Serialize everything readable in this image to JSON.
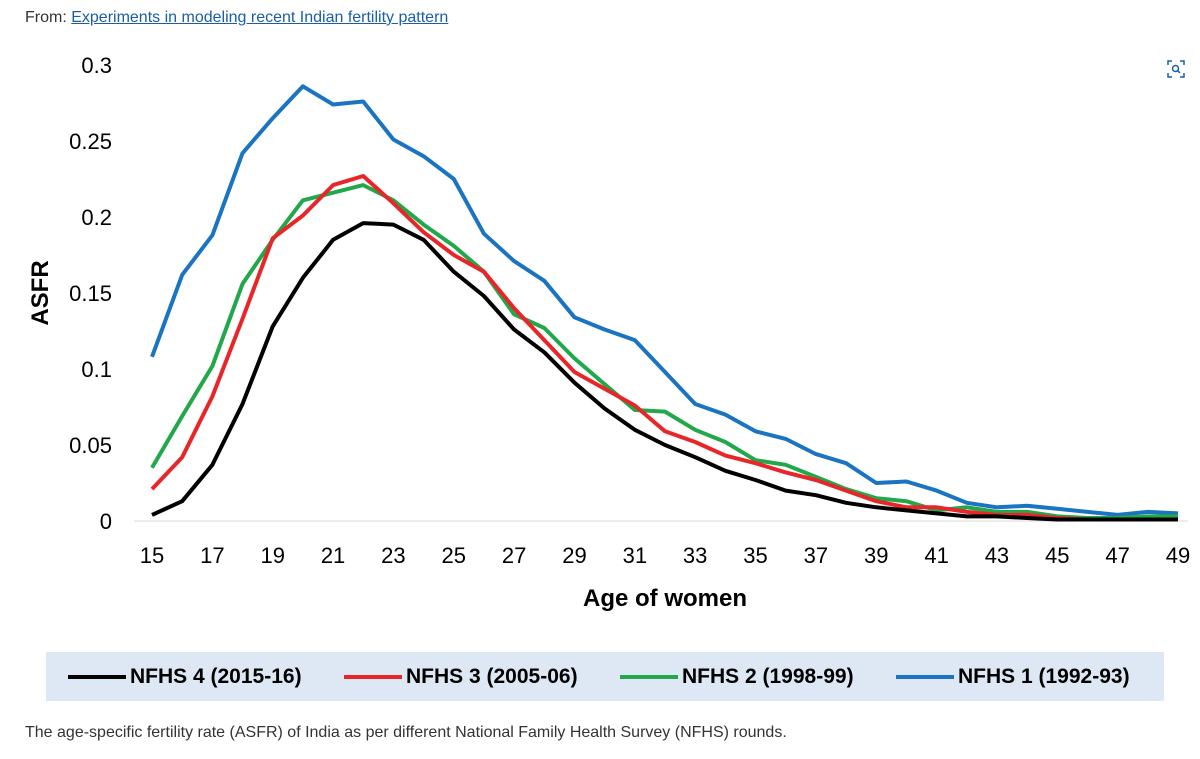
{
  "source": {
    "prefix": "From: ",
    "link_text": "Experiments in modeling recent Indian fertility pattern"
  },
  "expand_icon": "zoom-expand-icon",
  "caption": "The age-specific fertility rate (ASFR) of India as per different National Family Health Survey (NFHS) rounds.",
  "chart_data": {
    "type": "line",
    "title": "",
    "xlabel": "Age of women",
    "ylabel": "ASFR",
    "xlim": [
      15,
      49
    ],
    "ylim": [
      0,
      0.3
    ],
    "x_ticks": [
      15,
      17,
      19,
      21,
      23,
      25,
      27,
      29,
      31,
      33,
      35,
      37,
      39,
      41,
      43,
      45,
      47,
      49
    ],
    "y_ticks": [
      0,
      0.05,
      0.1,
      0.15,
      0.2,
      0.25,
      0.3
    ],
    "y_tick_labels": [
      "0",
      "0.05",
      "0.1",
      "0.15",
      "0.2",
      "0.25",
      "0.3"
    ],
    "grid": false,
    "legend_position": "bottom",
    "x": [
      15,
      16,
      17,
      18,
      19,
      20,
      21,
      22,
      23,
      24,
      25,
      26,
      27,
      28,
      29,
      30,
      31,
      32,
      33,
      34,
      35,
      36,
      37,
      38,
      39,
      40,
      41,
      42,
      43,
      44,
      45,
      46,
      47,
      48,
      49
    ],
    "series": [
      {
        "name": "NFHS 4 (2015-16)",
        "color": "#000000",
        "values": [
          0.004,
          0.013,
          0.037,
          0.077,
          0.128,
          0.16,
          0.185,
          0.196,
          0.195,
          0.185,
          0.164,
          0.148,
          0.126,
          0.111,
          0.091,
          0.074,
          0.06,
          0.05,
          0.042,
          0.033,
          0.027,
          0.02,
          0.017,
          0.012,
          0.009,
          0.007,
          0.005,
          0.003,
          0.003,
          0.002,
          0.001,
          0.001,
          0.001,
          0.001,
          0.001
        ]
      },
      {
        "name": "NFHS 3 (2005-06)",
        "color": "#e8262a",
        "values": [
          0.021,
          0.042,
          0.082,
          0.133,
          0.186,
          0.201,
          0.221,
          0.227,
          0.209,
          0.19,
          0.175,
          0.164,
          0.14,
          0.119,
          0.098,
          0.087,
          0.076,
          0.059,
          0.052,
          0.043,
          0.038,
          0.032,
          0.027,
          0.02,
          0.013,
          0.009,
          0.009,
          0.006,
          0.004,
          0.004,
          0.002,
          0.001,
          0.001,
          0.001,
          0.001
        ]
      },
      {
        "name": "NFHS 2 (1998-99)",
        "color": "#22a84a",
        "values": [
          0.035,
          0.069,
          0.102,
          0.156,
          0.185,
          0.211,
          0.216,
          0.221,
          0.211,
          0.195,
          0.181,
          0.164,
          0.136,
          0.127,
          0.107,
          0.09,
          0.073,
          0.072,
          0.06,
          0.052,
          0.04,
          0.037,
          0.029,
          0.021,
          0.015,
          0.013,
          0.007,
          0.009,
          0.006,
          0.006,
          0.003,
          0.002,
          0.002,
          0.003,
          0.003
        ]
      },
      {
        "name": "NFHS 1 (1992-93)",
        "color": "#1b74c1",
        "values": [
          0.108,
          0.162,
          0.188,
          0.242,
          0.265,
          0.286,
          0.274,
          0.276,
          0.251,
          0.24,
          0.225,
          0.189,
          0.171,
          0.158,
          0.134,
          0.126,
          0.119,
          0.098,
          0.077,
          0.07,
          0.059,
          0.054,
          0.044,
          0.038,
          0.025,
          0.026,
          0.02,
          0.012,
          0.009,
          0.01,
          0.008,
          0.006,
          0.004,
          0.006,
          0.005
        ]
      }
    ]
  }
}
